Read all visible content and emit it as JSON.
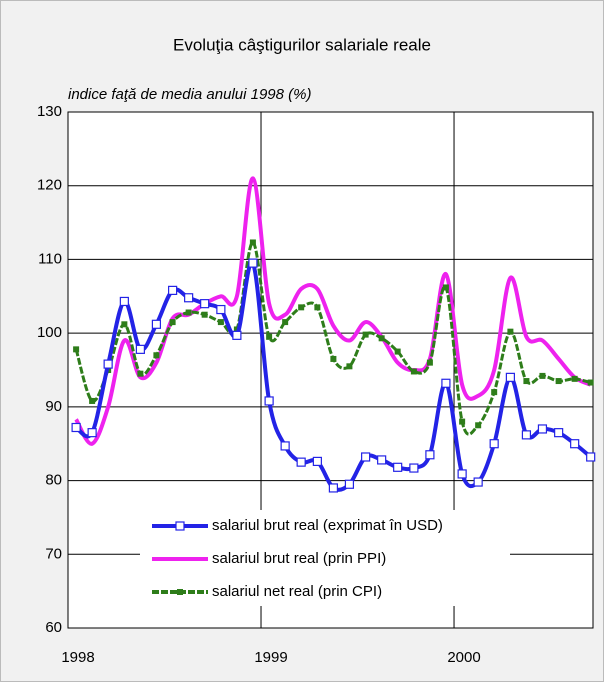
{
  "chart_data": {
    "type": "line",
    "title": "Evoluţia câştigurilor salariale reale",
    "subtitle": "indice faţă de media anului 1998 (%)",
    "x": [
      1998.042,
      1998.125,
      1998.208,
      1998.292,
      1998.375,
      1998.458,
      1998.542,
      1998.625,
      1998.708,
      1998.792,
      1998.875,
      1998.958,
      1999.042,
      1999.125,
      1999.208,
      1999.292,
      1999.375,
      1999.458,
      1999.542,
      1999.625,
      1999.708,
      1999.792,
      1999.875,
      1999.958,
      2000.042,
      2000.125,
      2000.208,
      2000.292,
      2000.375,
      2000.458,
      2000.542,
      2000.625,
      2000.708
    ],
    "xlim": [
      1998,
      2000.72
    ],
    "xticks": [
      1998,
      1999,
      2000
    ],
    "ylim": [
      60,
      130
    ],
    "yticks": [
      60,
      70,
      80,
      90,
      100,
      110,
      120,
      130
    ],
    "grid": true,
    "series": [
      {
        "name": "salariul brut real (exprimat în USD)",
        "color": "#2323e6",
        "marker": "hollow-square",
        "values": [
          87.2,
          86.5,
          95.8,
          104.3,
          97.8,
          101.2,
          105.8,
          104.8,
          104,
          103.2,
          99.7,
          109.5,
          90.8,
          84.7,
          82.5,
          82.6,
          79,
          79.5,
          83.2,
          82.8,
          81.8,
          81.7,
          83.5,
          93.2,
          80.9,
          79.8,
          85,
          94,
          86.2,
          87,
          86.5,
          85,
          83.2
        ]
      },
      {
        "name": "salariul brut real (prin PPI)",
        "color": "#ee22ee",
        "marker": "none",
        "values": [
          88.3,
          85,
          90,
          99,
          94,
          96,
          102,
          102.5,
          104,
          105,
          105,
          121,
          104,
          102.5,
          106,
          106,
          101,
          99,
          101.5,
          99.5,
          96,
          95,
          96.5,
          108,
          93,
          91.5,
          95,
          107.5,
          99.5,
          99,
          96.5,
          94,
          93
        ]
      },
      {
        "name": "salariul net real (prin CPI)",
        "color": "#2e7d1a",
        "marker": "filled-square",
        "values": [
          97.8,
          90.8,
          95,
          101.2,
          94.5,
          97,
          101.5,
          102.8,
          102.5,
          101.5,
          100.5,
          112.3,
          99.5,
          101.5,
          103.5,
          103.5,
          96.5,
          95.5,
          99.8,
          99.3,
          97.5,
          94.8,
          96,
          106.2,
          88,
          87.5,
          92,
          100.2,
          93.5,
          94.2,
          93.5,
          93.8,
          93.3
        ]
      }
    ]
  }
}
